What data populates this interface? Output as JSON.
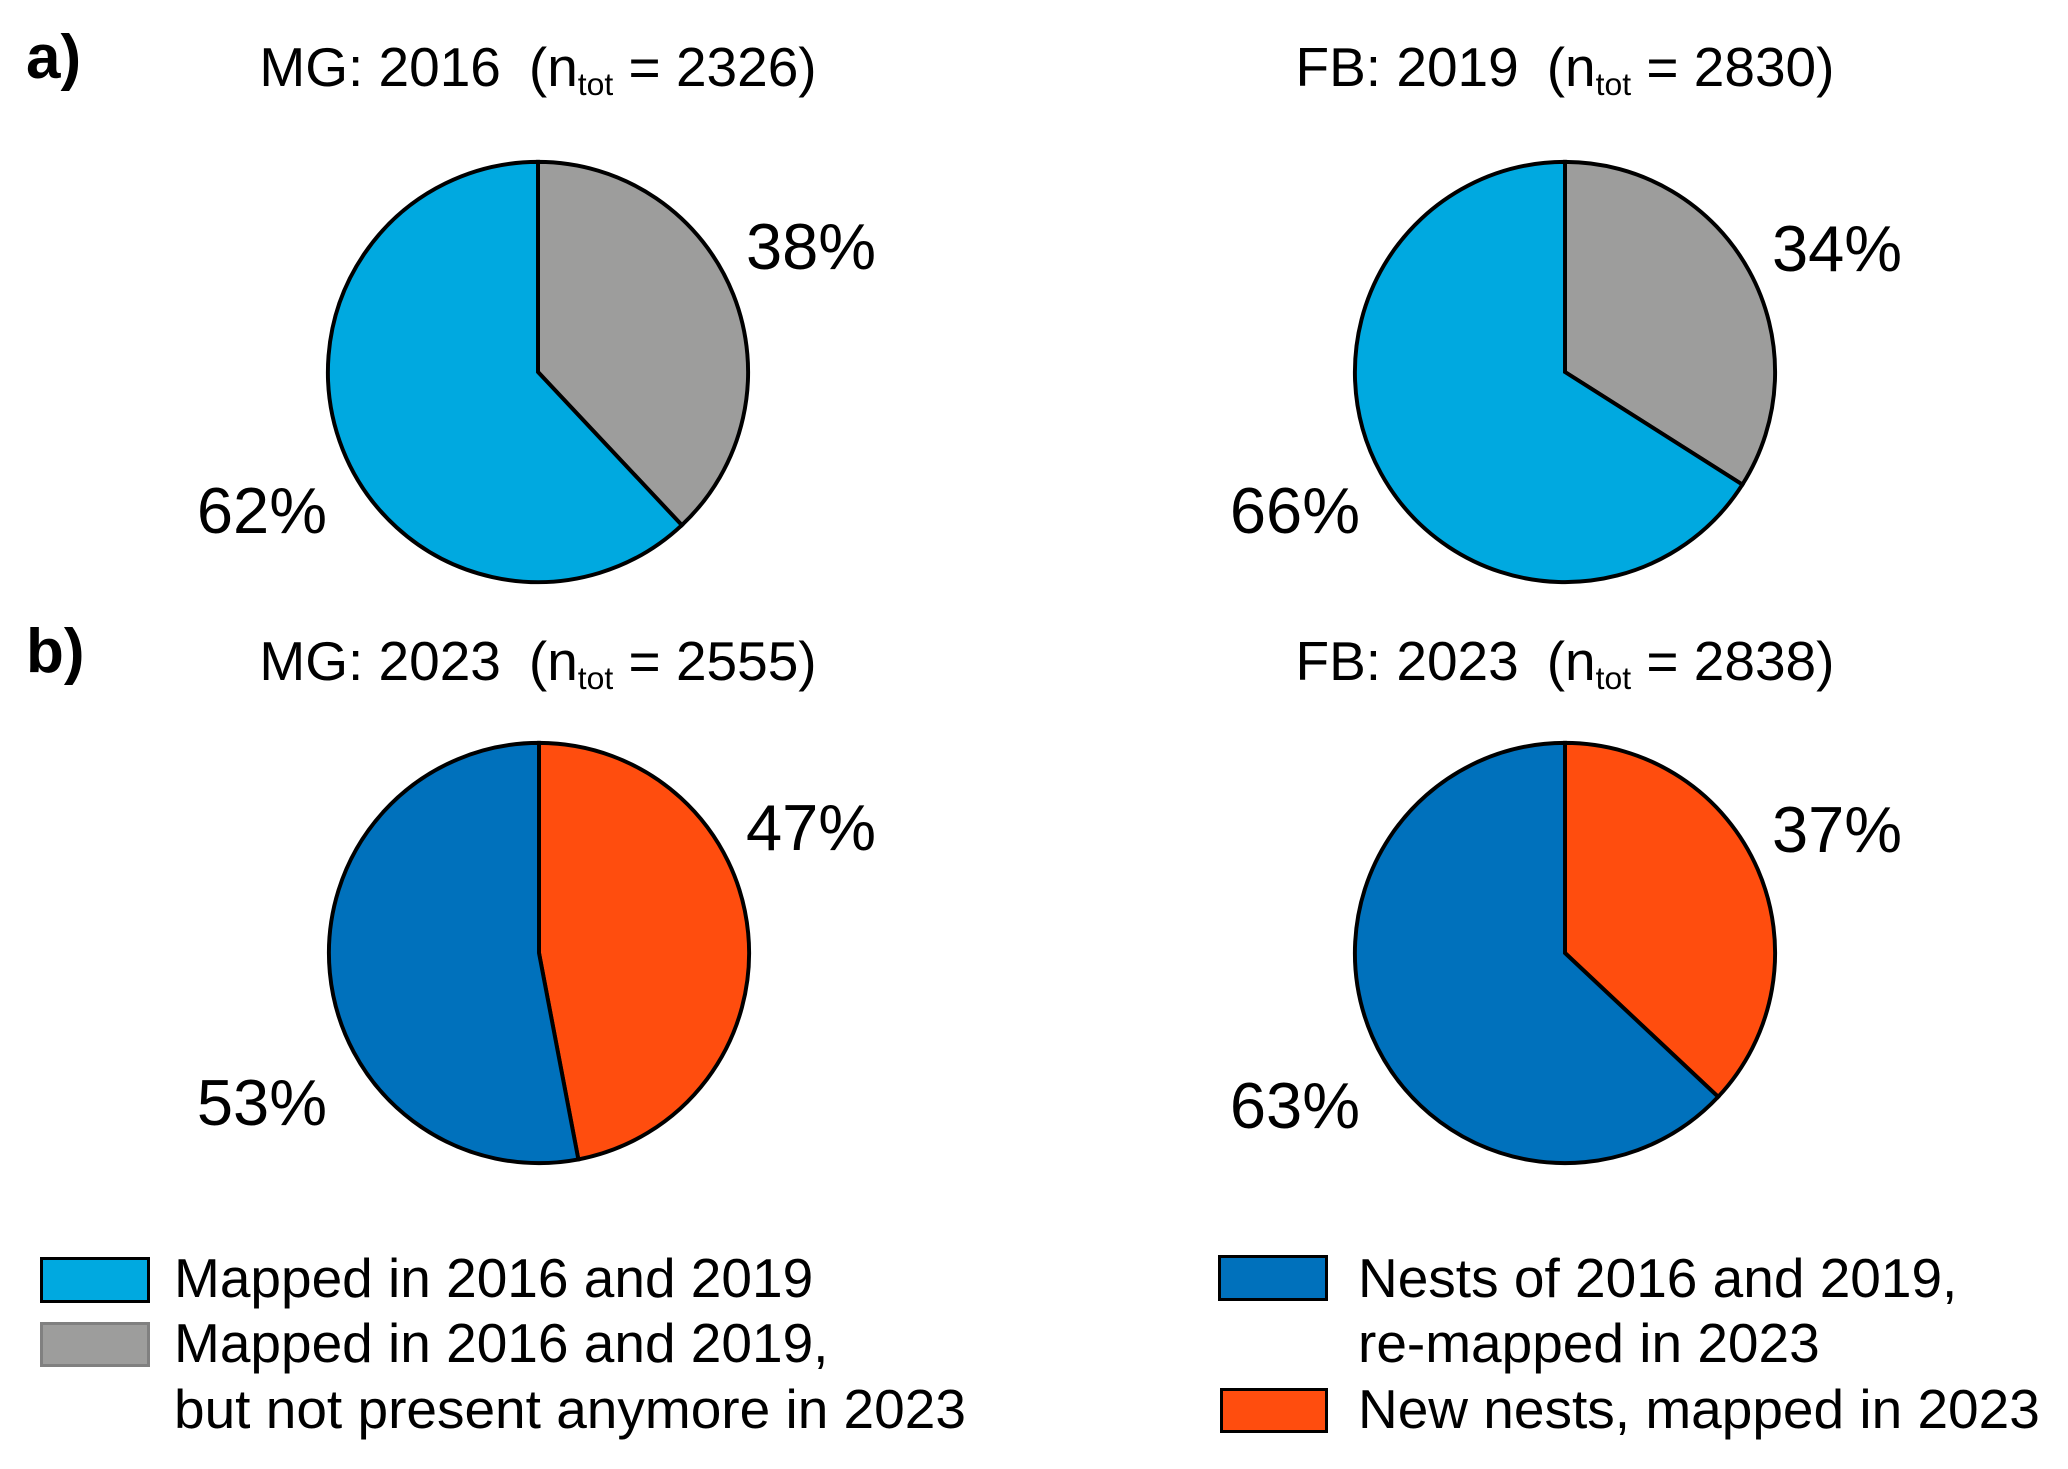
{
  "figure": {
    "background": "#FFFFFF",
    "panels": {
      "a_label": "a)",
      "b_label": "b)"
    }
  },
  "colors": {
    "cyan": "#00A9E0",
    "gray": "#9D9D9C",
    "blue": "#0071BC",
    "orange": "#FF4D0E",
    "outline": "#000000"
  },
  "chart_data": [
    {
      "type": "pie",
      "panel": "a",
      "site": "MG",
      "year": 2016,
      "title_main": "MG: 2016",
      "n_prefix": "(n",
      "n_sub": "tot",
      "n_suffix": " = 2326)",
      "n_total": 2326,
      "start_angle": "12 o'clock",
      "direction": "clockwise",
      "slices": [
        {
          "label": "Mapped in 2016 and 2019, but not present anymore in 2023",
          "pct": 38,
          "pct_label": "38%",
          "color": "#9D9D9C"
        },
        {
          "label": "Mapped in 2016 and 2019",
          "pct": 62,
          "pct_label": "62%",
          "color": "#00A9E0"
        }
      ]
    },
    {
      "type": "pie",
      "panel": "a",
      "site": "FB",
      "year": 2019,
      "title_main": "FB: 2019",
      "n_prefix": "(n",
      "n_sub": "tot",
      "n_suffix": " = 2830)",
      "n_total": 2830,
      "start_angle": "12 o'clock",
      "direction": "clockwise",
      "slices": [
        {
          "label": "Mapped in 2016 and 2019, but not present anymore in 2023",
          "pct": 34,
          "pct_label": "34%",
          "color": "#9D9D9C"
        },
        {
          "label": "Mapped in 2016 and 2019",
          "pct": 66,
          "pct_label": "66%",
          "color": "#00A9E0"
        }
      ]
    },
    {
      "type": "pie",
      "panel": "b",
      "site": "MG",
      "year": 2023,
      "title_main": "MG: 2023",
      "n_prefix": "(n",
      "n_sub": "tot",
      "n_suffix": " = 2555)",
      "n_total": 2555,
      "start_angle": "12 o'clock",
      "direction": "clockwise",
      "slices": [
        {
          "label": "New nests, mapped in 2023",
          "pct": 47,
          "pct_label": "47%",
          "color": "#FF4D0E"
        },
        {
          "label": "Nests of 2016 and 2019, re-mapped in 2023",
          "pct": 53,
          "pct_label": "53%",
          "color": "#0071BC"
        }
      ]
    },
    {
      "type": "pie",
      "panel": "b",
      "site": "FB",
      "year": 2023,
      "title_main": "FB: 2023",
      "n_prefix": "(n",
      "n_sub": "tot",
      "n_suffix": " = 2838)",
      "n_total": 2838,
      "start_angle": "12 o'clock",
      "direction": "clockwise",
      "slices": [
        {
          "label": "New nests, mapped in 2023",
          "pct": 37,
          "pct_label": "37%",
          "color": "#FF4D0E"
        },
        {
          "label": "Nests of 2016 and 2019, re-mapped in 2023",
          "pct": 63,
          "pct_label": "63%",
          "color": "#0071BC"
        }
      ]
    }
  ],
  "legend_left": {
    "items": [
      {
        "swatch_color": "#00A9E0",
        "swatch_border": "#000000",
        "lines": [
          "Mapped in 2016 and 2019"
        ]
      },
      {
        "swatch_color": "#9D9D9C",
        "swatch_border": "#808080",
        "lines": [
          "Mapped in 2016 and 2019,",
          "but not present anymore in 2023"
        ]
      }
    ]
  },
  "legend_right": {
    "items": [
      {
        "swatch_color": "#0071BC",
        "swatch_border": "#000000",
        "lines": [
          "Nests of 2016 and 2019,",
          "re-mapped in 2023"
        ]
      },
      {
        "swatch_color": "#FF4D0E",
        "swatch_border": "#000000",
        "lines": [
          "New nests, mapped in 2023"
        ]
      }
    ]
  }
}
